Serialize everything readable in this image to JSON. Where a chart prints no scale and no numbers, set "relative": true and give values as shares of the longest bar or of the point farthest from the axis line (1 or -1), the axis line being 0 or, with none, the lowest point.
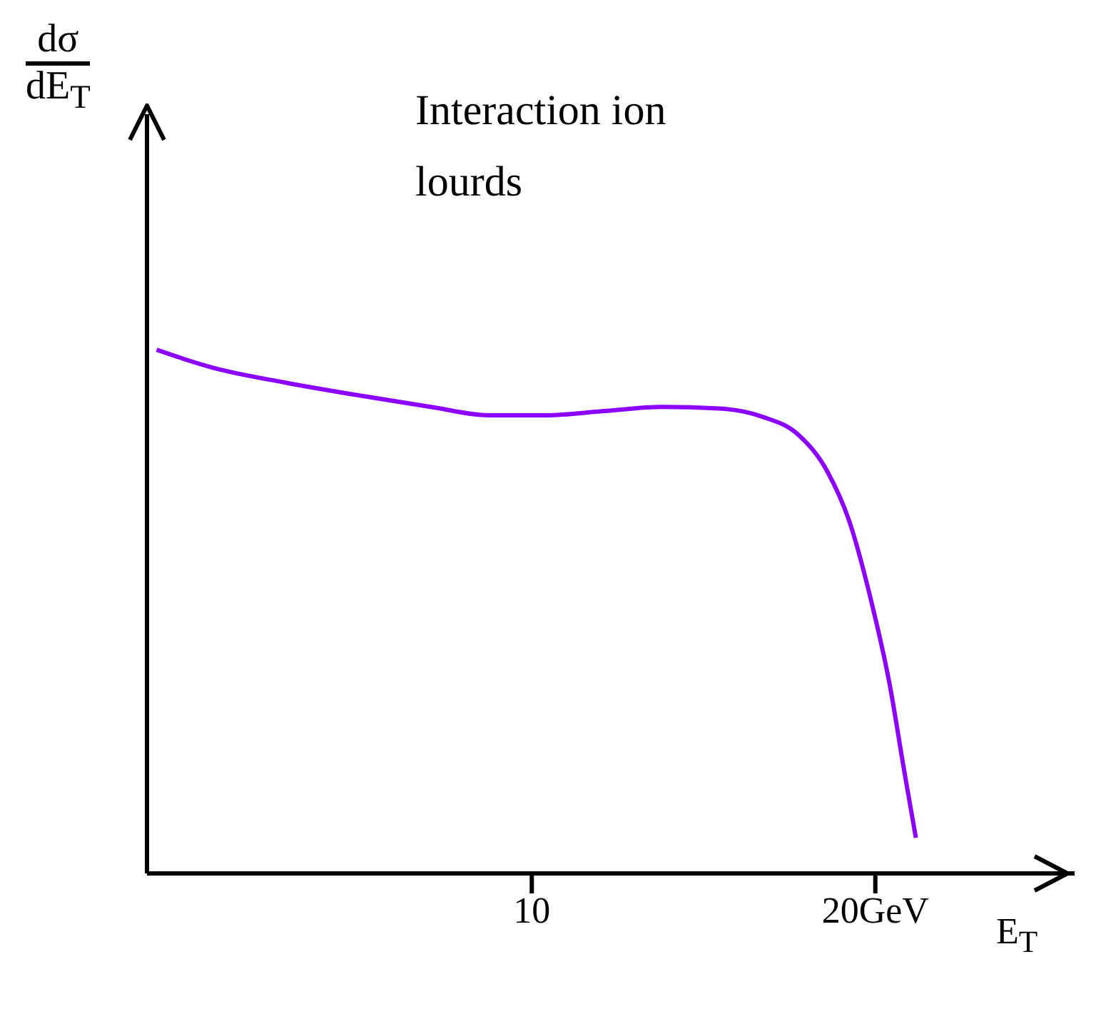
{
  "chart_data": {
    "type": "line",
    "title": "Interaction ion lourds",
    "xlabel": "E$_{T}$",
    "ylabel": "dσ/dE$_{T}$",
    "relative": true,
    "xlim": [
      -1.2,
      25.8
    ],
    "xticks": [
      10,
      {
        "value": 20,
        "label": "20GeV"
      }
    ],
    "grid": false,
    "legend": false,
    "marker": "none",
    "line_style": "solid",
    "series": [
      {
        "color": "#8b00ff",
        "x": [
          -0.92,
          0.76,
          2.86,
          4.96,
          7.06,
          8.74,
          10.42,
          12.1,
          13.78,
          15.46,
          16.72,
          17.77,
          18.6,
          19.24,
          19.87,
          20.42,
          20.84,
          21.18
        ],
        "values": [
          1.0,
          0.965,
          0.937,
          0.913,
          0.891,
          0.875,
          0.875,
          0.883,
          0.891,
          0.888,
          0.872,
          0.837,
          0.768,
          0.673,
          0.523,
          0.36,
          0.196,
          0.068
        ]
      }
    ]
  }
}
